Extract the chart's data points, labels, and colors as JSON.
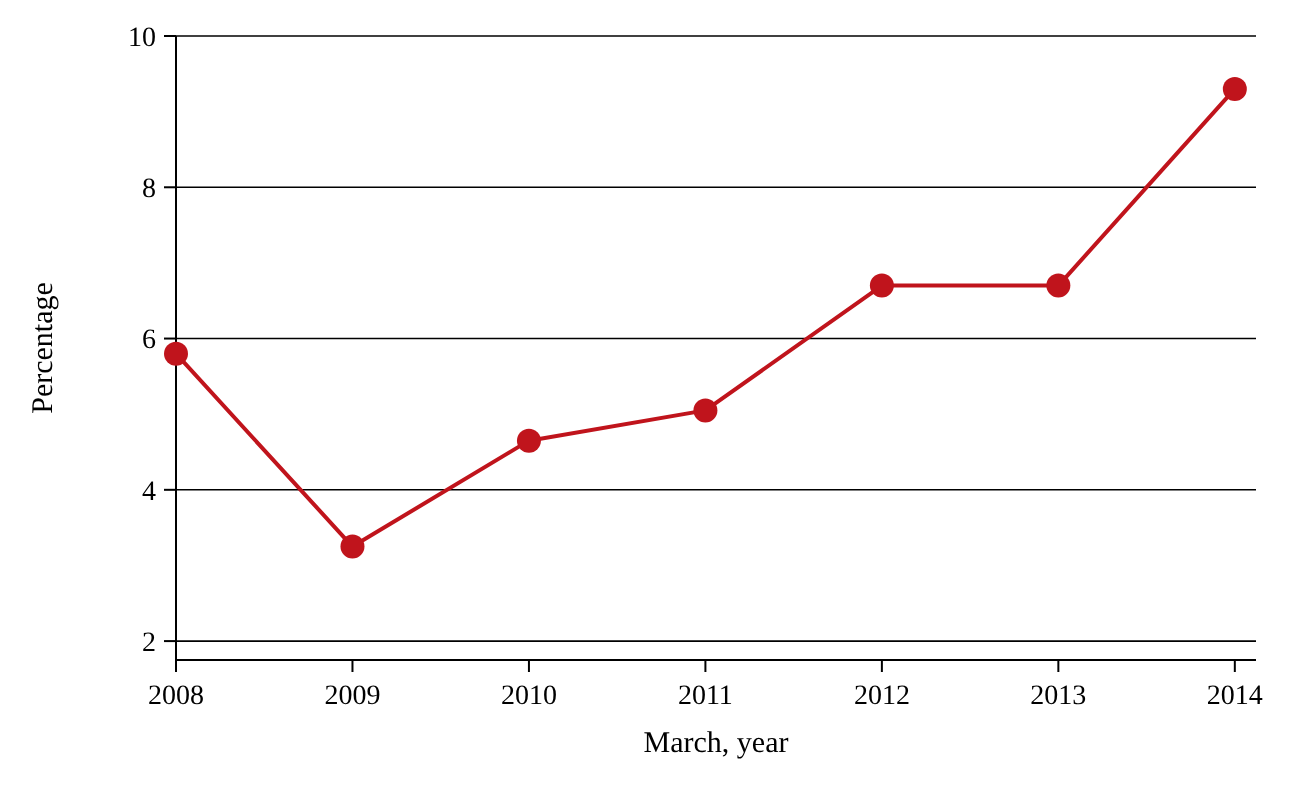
{
  "chart_data": {
    "type": "line",
    "xlabel": "March, year",
    "ylabel": "Percentage",
    "x": [
      2008,
      2009,
      2010,
      2011,
      2012,
      2013,
      2014
    ],
    "series": [
      {
        "color": "#c0141c",
        "values": [
          5.8,
          3.25,
          4.65,
          5.05,
          6.7,
          6.7,
          9.3
        ]
      }
    ],
    "xlim": [
      2008,
      2014.12
    ],
    "xticks": [
      2008,
      2009,
      2010,
      2011,
      2012,
      2013,
      2014
    ],
    "ylim": [
      1.75,
      10
    ],
    "yticks": [
      2,
      4,
      6,
      8,
      10
    ],
    "grid": "y",
    "marker": "circle",
    "line_style": "solid"
  }
}
